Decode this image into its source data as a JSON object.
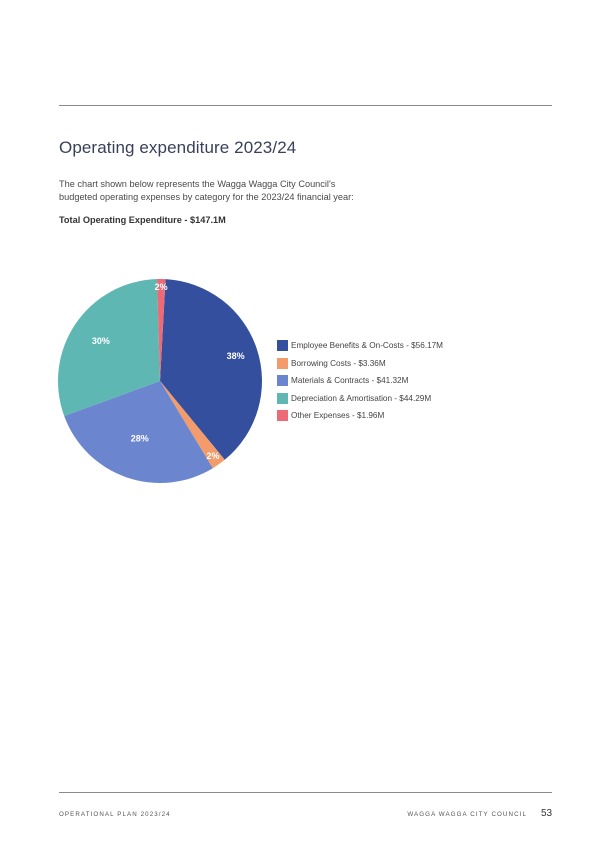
{
  "page": {
    "title": "Operating expenditure 2023/24",
    "intro_line1": "The chart shown below represents the Wagga Wagga City Council's",
    "intro_line2": "budgeted operating expenses by category for the 2023/24 financial year:",
    "subheading": "Total Operating Expenditure - $147.1M"
  },
  "chart_data": {
    "type": "pie",
    "title": "Total Operating Expenditure - $147.1M",
    "legend_position": "right",
    "categories": [
      "Employee Benefits & On-Costs - $56.17M",
      "Borrowing Costs - $3.36M",
      "Materials & Contracts - $41.32M",
      "Depreciation & Amortisation - $44.29M",
      "Other Expenses - $1.96M"
    ],
    "values": [
      56.17,
      3.36,
      41.32,
      44.29,
      1.96
    ],
    "labels": [
      "38%",
      "2%",
      "28%",
      "30%",
      "2%"
    ],
    "colors": [
      "#344f9d",
      "#f39b6b",
      "#6b86cf",
      "#5fb7b3",
      "#ec6b76"
    ]
  },
  "footer": {
    "left": "OPERATIONAL PLAN 2023/24",
    "right": "WAGGA WAGGA CITY COUNCIL",
    "page_number": "53"
  }
}
